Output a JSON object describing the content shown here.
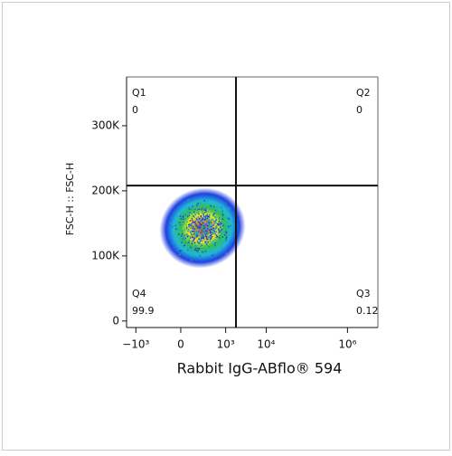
{
  "chart_data": {
    "type": "flow-density",
    "x_label": "Rabbit IgG-ABflo® 594",
    "y_label": "FSC-H :: FSC-H",
    "xscale": "biexponential",
    "xlim": [
      -1700,
      5600000
    ],
    "xticks": [
      {
        "value": -1000,
        "label": "−10³"
      },
      0,
      {
        "value": 1000,
        "label": "10³"
      },
      {
        "value": 10000,
        "label": "10⁴"
      },
      {
        "value": 1000000,
        "label": "10⁶"
      }
    ],
    "ylim": [
      -10000,
      375000
    ],
    "yticks": [
      0,
      {
        "value": 100000,
        "label": "100K"
      },
      {
        "value": 200000,
        "label": "200K"
      },
      {
        "value": 300000,
        "label": "300K"
      }
    ],
    "gates": {
      "x": 1800,
      "y": 208000
    },
    "quadrants": [
      {
        "name": "Q1",
        "value": 0,
        "corner": "top-left"
      },
      {
        "name": "Q2",
        "value": 0,
        "corner": "top-right"
      },
      {
        "name": "Q3",
        "value": 0.12,
        "corner": "bottom-right"
      },
      {
        "name": "Q4",
        "value": 99.9,
        "corner": "bottom-left"
      }
    ]
  }
}
